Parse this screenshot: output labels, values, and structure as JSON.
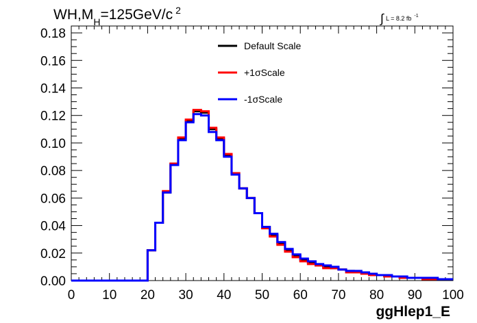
{
  "chart_data": {
    "type": "line",
    "title": {
      "main": "WH,M",
      "sub": "H",
      "after": "=125GeV/c",
      "sup": "2"
    },
    "lumi": {
      "integral": "∫",
      "text": "L = 8.2 fb",
      "sup": "-1"
    },
    "xlabel": "ggHlep1_E",
    "ylabel": "",
    "xlim": [
      0,
      100
    ],
    "ylim": [
      0,
      0.185
    ],
    "x_ticks": [
      "0",
      "10",
      "20",
      "30",
      "40",
      "50",
      "60",
      "70",
      "80",
      "90",
      "100"
    ],
    "y_ticks": [
      "0.00",
      "0.02",
      "0.04",
      "0.06",
      "0.08",
      "0.10",
      "0.12",
      "0.14",
      "0.16",
      "0.18"
    ],
    "bin_edges": [
      0,
      2,
      4,
      6,
      8,
      10,
      12,
      14,
      16,
      18,
      20,
      22,
      24,
      26,
      28,
      30,
      32,
      34,
      36,
      38,
      40,
      42,
      44,
      46,
      48,
      50,
      52,
      54,
      56,
      58,
      60,
      62,
      64,
      66,
      68,
      70,
      72,
      74,
      76,
      78,
      80,
      82,
      84,
      86,
      88,
      90,
      92,
      94,
      96,
      98,
      100
    ],
    "grid": false,
    "legend_position": "top-center",
    "series": [
      {
        "name": "Default Scale",
        "color": "#000000",
        "values": [
          0,
          0,
          0,
          0,
          0,
          0,
          0,
          0,
          0,
          0,
          0.022,
          0.042,
          0.064,
          0.085,
          0.103,
          0.116,
          0.123,
          0.122,
          0.11,
          0.103,
          0.091,
          0.078,
          0.067,
          0.06,
          0.049,
          0.039,
          0.033,
          0.027,
          0.022,
          0.018,
          0.015,
          0.013,
          0.011,
          0.01,
          0.009,
          0.008,
          0.007,
          0.006,
          0.005,
          0.005,
          0.004,
          0.003,
          0.003,
          0.002,
          0.002,
          0.002,
          0.002,
          0.001,
          0.001,
          0.001
        ]
      },
      {
        "name": "+1σScale",
        "color": "#ff0000",
        "values": [
          0,
          0,
          0,
          0,
          0,
          0,
          0,
          0,
          0,
          0,
          0.022,
          0.042,
          0.065,
          0.085,
          0.104,
          0.117,
          0.124,
          0.123,
          0.111,
          0.104,
          0.092,
          0.078,
          0.067,
          0.06,
          0.049,
          0.038,
          0.032,
          0.026,
          0.021,
          0.017,
          0.014,
          0.012,
          0.011,
          0.009,
          0.009,
          0.008,
          0.006,
          0.006,
          0.005,
          0.004,
          0.004,
          0.003,
          0.003,
          0.002,
          0.002,
          0.002,
          0.001,
          0.001,
          0.001,
          0.001
        ]
      },
      {
        "name": "-1σScale",
        "color": "#0000ff",
        "values": [
          0,
          0,
          0,
          0,
          0,
          0,
          0,
          0,
          0,
          0,
          0.022,
          0.042,
          0.064,
          0.084,
          0.102,
          0.115,
          0.121,
          0.12,
          0.108,
          0.102,
          0.09,
          0.077,
          0.067,
          0.06,
          0.049,
          0.039,
          0.034,
          0.028,
          0.023,
          0.019,
          0.016,
          0.014,
          0.012,
          0.011,
          0.01,
          0.008,
          0.007,
          0.007,
          0.006,
          0.005,
          0.004,
          0.004,
          0.003,
          0.003,
          0.002,
          0.002,
          0.002,
          0.002,
          0.001,
          0.001
        ]
      }
    ]
  }
}
